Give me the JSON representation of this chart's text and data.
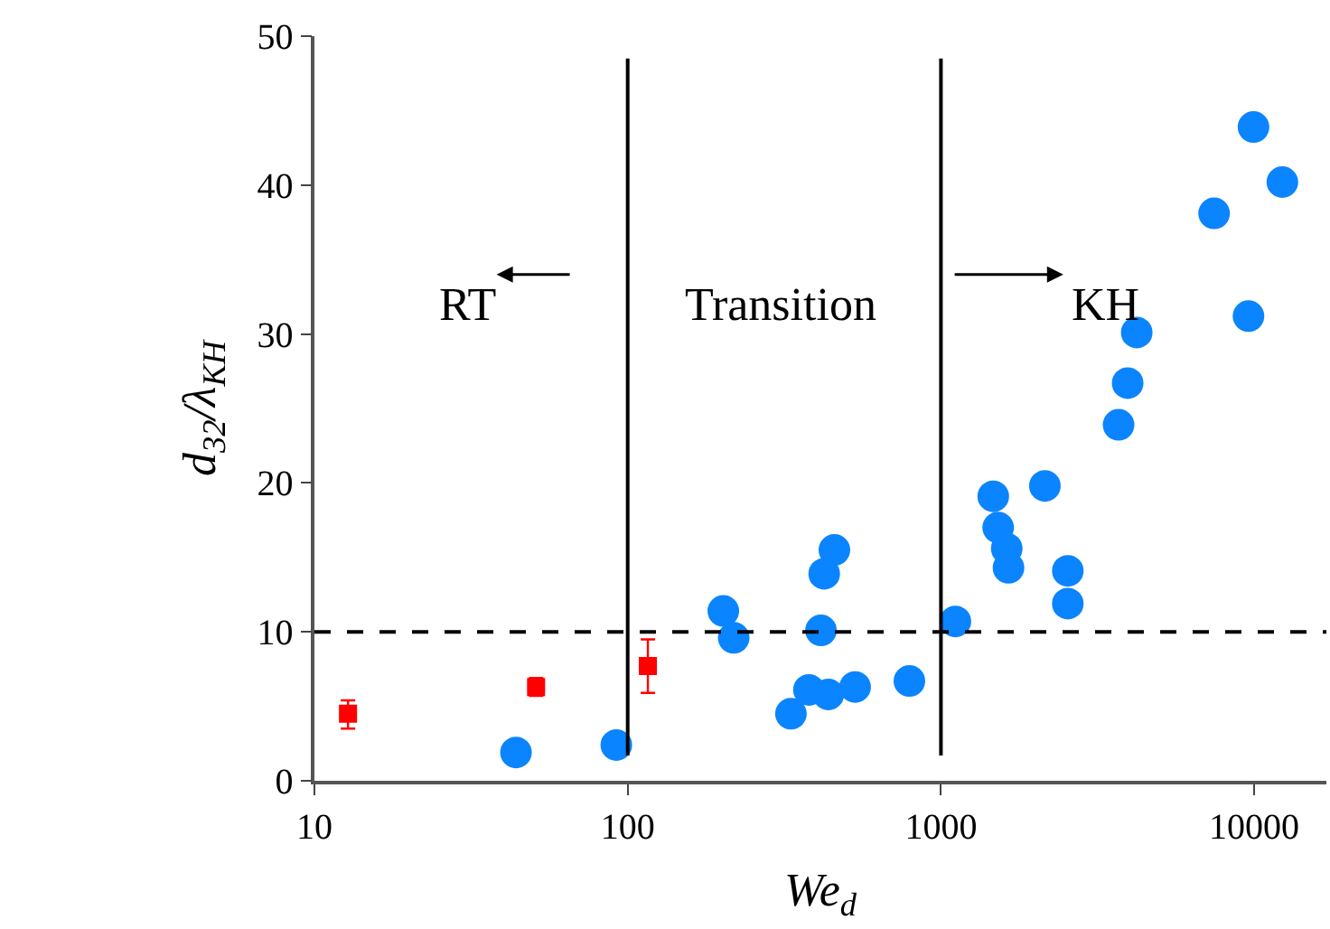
{
  "chart_data": {
    "type": "scatter",
    "xlabel": "We$_{d}$",
    "ylabel": "d$_{32}$/λ$_{KH}$",
    "log": "x",
    "xlim": [
      10,
      17000
    ],
    "xticks": [
      10,
      100,
      1000,
      10000
    ],
    "ylim": [
      0,
      50
    ],
    "yticks": [
      0,
      10,
      20,
      30,
      40,
      50
    ],
    "series": [
      {
        "color": "#ff0000",
        "marker": "square",
        "x": [
          12.8,
          51,
          116
        ],
        "values": [
          4.5,
          6.3,
          7.7
        ],
        "errors": [
          [
            3.5,
            5.4
          ],
          [
            5.7,
            6.9
          ],
          [
            5.9,
            9.5
          ]
        ]
      },
      {
        "color": "#0a84ff",
        "marker": "circle",
        "x": [
          44,
          92,
          332,
          379,
          437,
          532,
          793
        ],
        "values": [
          1.9,
          2.4,
          4.5,
          6.1,
          5.8,
          6.3,
          6.7
        ]
      },
      {
        "color": "#0a84ff",
        "marker": "circle",
        "x": [
          202,
          218,
          414,
          424,
          457,
          1112,
          1469,
          1523,
          1622,
          1643,
          2147,
          2541,
          2541,
          3690,
          3945,
          4217,
          7448,
          9590,
          9950,
          12300
        ],
        "values": [
          11.4,
          9.6,
          10.1,
          13.9,
          15.5,
          10.7,
          19.1,
          17.0,
          15.6,
          14.3,
          19.8,
          14.1,
          11.9,
          23.9,
          26.7,
          30.1,
          38.1,
          31.2,
          43.9,
          40.2
        ]
      }
    ],
    "ref_lines": [
      {
        "axis": "y",
        "value": 10,
        "line_style": "dashed",
        "color": "#000000"
      },
      {
        "axis": "x",
        "value": 100,
        "line_style": "solid",
        "color": "#000000"
      },
      {
        "axis": "x",
        "value": 1000,
        "line_style": "solid",
        "color": "#000000"
      }
    ],
    "annotations": [
      "RT",
      "Transition",
      "KH"
    ]
  }
}
